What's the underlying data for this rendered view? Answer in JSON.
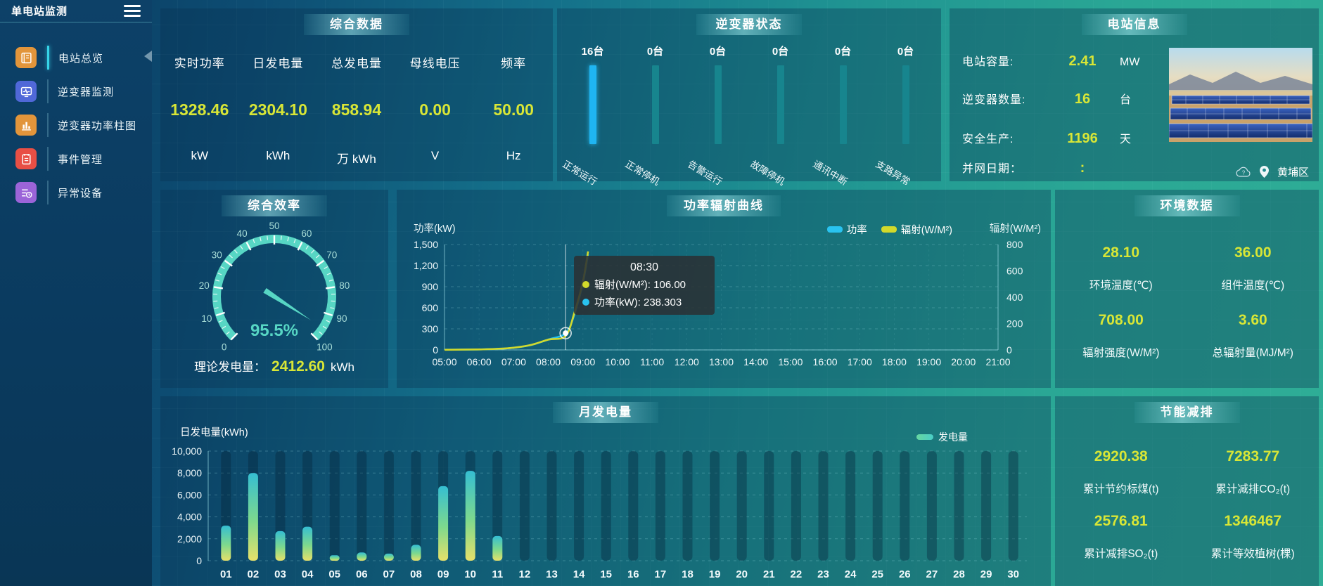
{
  "sidebar": {
    "title": "单电站监测",
    "items": [
      {
        "key": "overview",
        "label": "电站总览",
        "icon": "journal-icon",
        "color": "#e2953b",
        "active": true
      },
      {
        "key": "inverter-monitor",
        "label": "逆变器监测",
        "icon": "monitor-wave-icon",
        "color": "#5068d8",
        "active": false
      },
      {
        "key": "inverter-power-bars",
        "label": "逆变器功率柱图",
        "icon": "bar-chart-icon",
        "color": "#e2953b",
        "active": false
      },
      {
        "key": "event-management",
        "label": "事件管理",
        "icon": "notebook-icon",
        "color": "#e84f45",
        "active": false
      },
      {
        "key": "abnormal-devices",
        "label": "异常设备",
        "icon": "device-list-icon",
        "color": "#9b64d8",
        "active": false
      }
    ]
  },
  "summary": {
    "title": "综合数据",
    "metrics": [
      {
        "label": "实时功率",
        "value": "1328.46",
        "unit": "kW"
      },
      {
        "label": "日发电量",
        "value": "2304.10",
        "unit": "kWh"
      },
      {
        "label": "总发电量",
        "value": "858.94",
        "unit": "万 kWh"
      },
      {
        "label": "母线电压",
        "value": "0.00",
        "unit": "V"
      },
      {
        "label": "频率",
        "value": "50.00",
        "unit": "Hz"
      }
    ]
  },
  "inverter_status": {
    "title": "逆变器状态",
    "count_suffix": "台",
    "chart_data": {
      "type": "bar",
      "categories": [
        "正常运行",
        "正常停机",
        "告警运行",
        "故障停机",
        "通讯中断",
        "支路异常"
      ],
      "values": [
        16,
        0,
        0,
        0,
        0,
        0
      ]
    }
  },
  "station_info": {
    "title": "电站信息",
    "rows": [
      {
        "label": "电站容量:",
        "value": "2.41",
        "unit": "MW"
      },
      {
        "label": "逆变器数量:",
        "value": "16",
        "unit": "台"
      },
      {
        "label": "安全生产:",
        "value": "1196",
        "unit": "天"
      },
      {
        "label": "并网日期：",
        "value": ":",
        "unit": ""
      }
    ],
    "location": "黄埔区"
  },
  "efficiency": {
    "title": "综合效率",
    "chart_data": {
      "type": "gauge",
      "value": 95.5,
      "display": "95.5%",
      "min": 0,
      "max": 100,
      "step": 10
    },
    "theory_label": "理论发电量：",
    "theory_value": "2412.60",
    "theory_unit": "kWh"
  },
  "power_curve": {
    "title": "功率辐射曲线",
    "left_axis": {
      "name": "功率(kW)",
      "min": 0,
      "max": 1500,
      "step": 300
    },
    "right_axis": {
      "name": "辐射(W/M²)",
      "min": 0,
      "max": 800,
      "step": 200
    },
    "legend": [
      {
        "name": "功率",
        "color": "#29c3f0"
      },
      {
        "name": "辐射(W/M²)",
        "color": "#d2d92b"
      }
    ],
    "tooltip": {
      "time": "08:30",
      "rows": [
        {
          "name": "辐射(W/M²)",
          "value": "106.00",
          "color": "#d2d92b"
        },
        {
          "name": "功率(kW)",
          "value": "238.303",
          "color": "#29c3f0"
        }
      ]
    },
    "chart_data": {
      "type": "line",
      "x_labels": [
        "05:00",
        "06:00",
        "07:00",
        "08:00",
        "09:00",
        "10:00",
        "11:00",
        "12:00",
        "13:00",
        "14:00",
        "15:00",
        "16:00",
        "17:00",
        "18:00",
        "19:00",
        "20:00",
        "21:00"
      ],
      "x_range": [
        5,
        21
      ],
      "series": [
        {
          "name": "功率",
          "axis": "left",
          "color": "#29c3f0",
          "points": [
            [
              5,
              3
            ],
            [
              5.5,
              4
            ],
            [
              6,
              7
            ],
            [
              6.5,
              14
            ],
            [
              7,
              30
            ],
            [
              7.5,
              70
            ],
            [
              8,
              148
            ],
            [
              8.5,
              238.3
            ],
            [
              8.75,
              500
            ],
            [
              9,
              950
            ],
            [
              9.15,
              1360
            ]
          ]
        },
        {
          "name": "辐射(W/M²)",
          "axis": "right",
          "color": "#d2d92b",
          "points": [
            [
              5,
              1
            ],
            [
              5.5,
              2
            ],
            [
              6,
              4
            ],
            [
              6.5,
              8
            ],
            [
              7,
              17
            ],
            [
              7.5,
              38
            ],
            [
              8,
              78
            ],
            [
              8.5,
              106
            ],
            [
              8.75,
              280
            ],
            [
              9,
              520
            ],
            [
              9.15,
              748
            ]
          ]
        }
      ],
      "marker": {
        "x": 8.5,
        "value": 238.3,
        "series": "功率"
      }
    }
  },
  "environment": {
    "title": "环境数据",
    "metrics": [
      {
        "value": "28.10",
        "label": "环境温度(℃)"
      },
      {
        "value": "36.00",
        "label": "组件温度(℃)"
      },
      {
        "value": "708.00",
        "label": "辐射强度(W/M²)"
      },
      {
        "value": "3.60",
        "label": "总辐射量(MJ/M²)"
      }
    ]
  },
  "monthly": {
    "title": "月发电量",
    "axis_name": "日发电量(kWh)",
    "legend": "发电量",
    "chart_data": {
      "type": "bar",
      "ylim": [
        0,
        10000
      ],
      "step": 2000,
      "categories": [
        "01",
        "02",
        "03",
        "04",
        "05",
        "06",
        "07",
        "08",
        "09",
        "10",
        "11",
        "12",
        "13",
        "14",
        "15",
        "16",
        "17",
        "18",
        "19",
        "20",
        "21",
        "22",
        "23",
        "24",
        "25",
        "26",
        "27",
        "28",
        "29",
        "30"
      ],
      "values": [
        3200,
        8000,
        2700,
        3100,
        500,
        750,
        650,
        1450,
        6800,
        8200,
        2250,
        0,
        0,
        0,
        0,
        0,
        0,
        0,
        0,
        0,
        0,
        0,
        0,
        0,
        0,
        0,
        0,
        0,
        0,
        0
      ]
    }
  },
  "saving": {
    "title": "节能减排",
    "metrics": [
      {
        "value": "2920.38",
        "label": "累计节约标煤(t)"
      },
      {
        "value": "7283.77",
        "label": "累计减排CO₂(t)"
      },
      {
        "value": "2576.81",
        "label": "累计减排SO₂(t)"
      },
      {
        "value": "1346467",
        "label": "累计等效植树(棵)"
      }
    ]
  },
  "colors": {
    "value_accent": "#d8e636",
    "gauge": "#57d6c4",
    "inverter_bar_active": "#1fb5f2",
    "inverter_bar_idle": "#17858e",
    "power_line": "#29c3f0",
    "radiation_line": "#d2d92b",
    "bar_gradient_top": "#35bed2",
    "bar_gradient_bottom": "#e6e06a"
  }
}
